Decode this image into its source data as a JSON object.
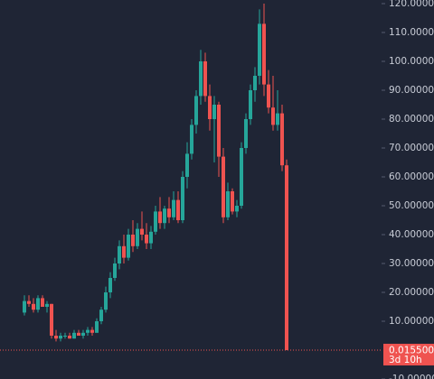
{
  "chart_data": {
    "type": "candlestick",
    "open": [
      13,
      17,
      16,
      14,
      18,
      15,
      16,
      5,
      4,
      5,
      5,
      4,
      6,
      5,
      6,
      7,
      6,
      10,
      14,
      20,
      25,
      30,
      36,
      32,
      40,
      36,
      42,
      40,
      37,
      41,
      48,
      44,
      49,
      46,
      52,
      45,
      60,
      68,
      78,
      88,
      100,
      88,
      80,
      85,
      67,
      46,
      55,
      48,
      50,
      70,
      80,
      90,
      95,
      113,
      92,
      84,
      78,
      82,
      64
    ],
    "high": [
      19,
      19,
      18,
      19,
      19,
      17,
      16,
      7,
      6,
      6,
      6,
      7,
      7,
      7,
      8,
      8,
      11,
      15,
      22,
      27,
      32,
      38,
      40,
      42,
      45,
      44,
      48,
      44,
      43,
      50,
      53,
      50,
      53,
      55,
      55,
      62,
      72,
      80,
      90,
      104,
      103,
      92,
      88,
      86,
      70,
      58,
      56,
      52,
      72,
      82,
      92,
      98,
      118,
      120,
      97,
      95,
      90,
      85,
      66
    ],
    "low": [
      12,
      15,
      13,
      13,
      15,
      13,
      4,
      3,
      3,
      4,
      4,
      4,
      5,
      4,
      5,
      5,
      6,
      9,
      13,
      18,
      24,
      28,
      30,
      31,
      34,
      35,
      38,
      35,
      35,
      40,
      42,
      42,
      44,
      45,
      44,
      44,
      56,
      66,
      75,
      85,
      86,
      76,
      65,
      60,
      44,
      45,
      47,
      46,
      49,
      68,
      78,
      86,
      92,
      88,
      82,
      76,
      76,
      62,
      0
    ],
    "close": [
      17,
      16,
      14,
      18,
      15,
      16,
      5,
      4,
      5,
      5,
      4,
      6,
      5,
      6,
      7,
      6,
      10,
      14,
      20,
      25,
      30,
      36,
      32,
      40,
      36,
      42,
      40,
      37,
      41,
      48,
      44,
      49,
      46,
      52,
      45,
      60,
      68,
      78,
      88,
      100,
      88,
      80,
      85,
      67,
      46,
      55,
      48,
      50,
      70,
      80,
      90,
      95,
      113,
      92,
      84,
      78,
      82,
      64,
      0.0155
    ],
    "up_color": "#26a69a",
    "down_color": "#ef5350",
    "ylim": [
      -10,
      121.25
    ],
    "yticks": [
      {
        "value": -10,
        "label": "-10.000000"
      },
      {
        "value": 10,
        "label": "10.000000"
      },
      {
        "value": 20,
        "label": "20.000000"
      },
      {
        "value": 30,
        "label": "30.000000"
      },
      {
        "value": 40,
        "label": "40.000000"
      },
      {
        "value": 50,
        "label": "50.000000"
      },
      {
        "value": 60,
        "label": "60.000000"
      },
      {
        "value": 70,
        "label": "70.000000"
      },
      {
        "value": 80,
        "label": "80.000000"
      },
      {
        "value": 90,
        "label": "90.000000"
      },
      {
        "value": 100,
        "label": "100.000000"
      },
      {
        "value": 110,
        "label": "110.000000"
      },
      {
        "value": 120,
        "label": "120.000000"
      }
    ],
    "last_label": "0.0155000",
    "countdown": "3d 10h"
  }
}
